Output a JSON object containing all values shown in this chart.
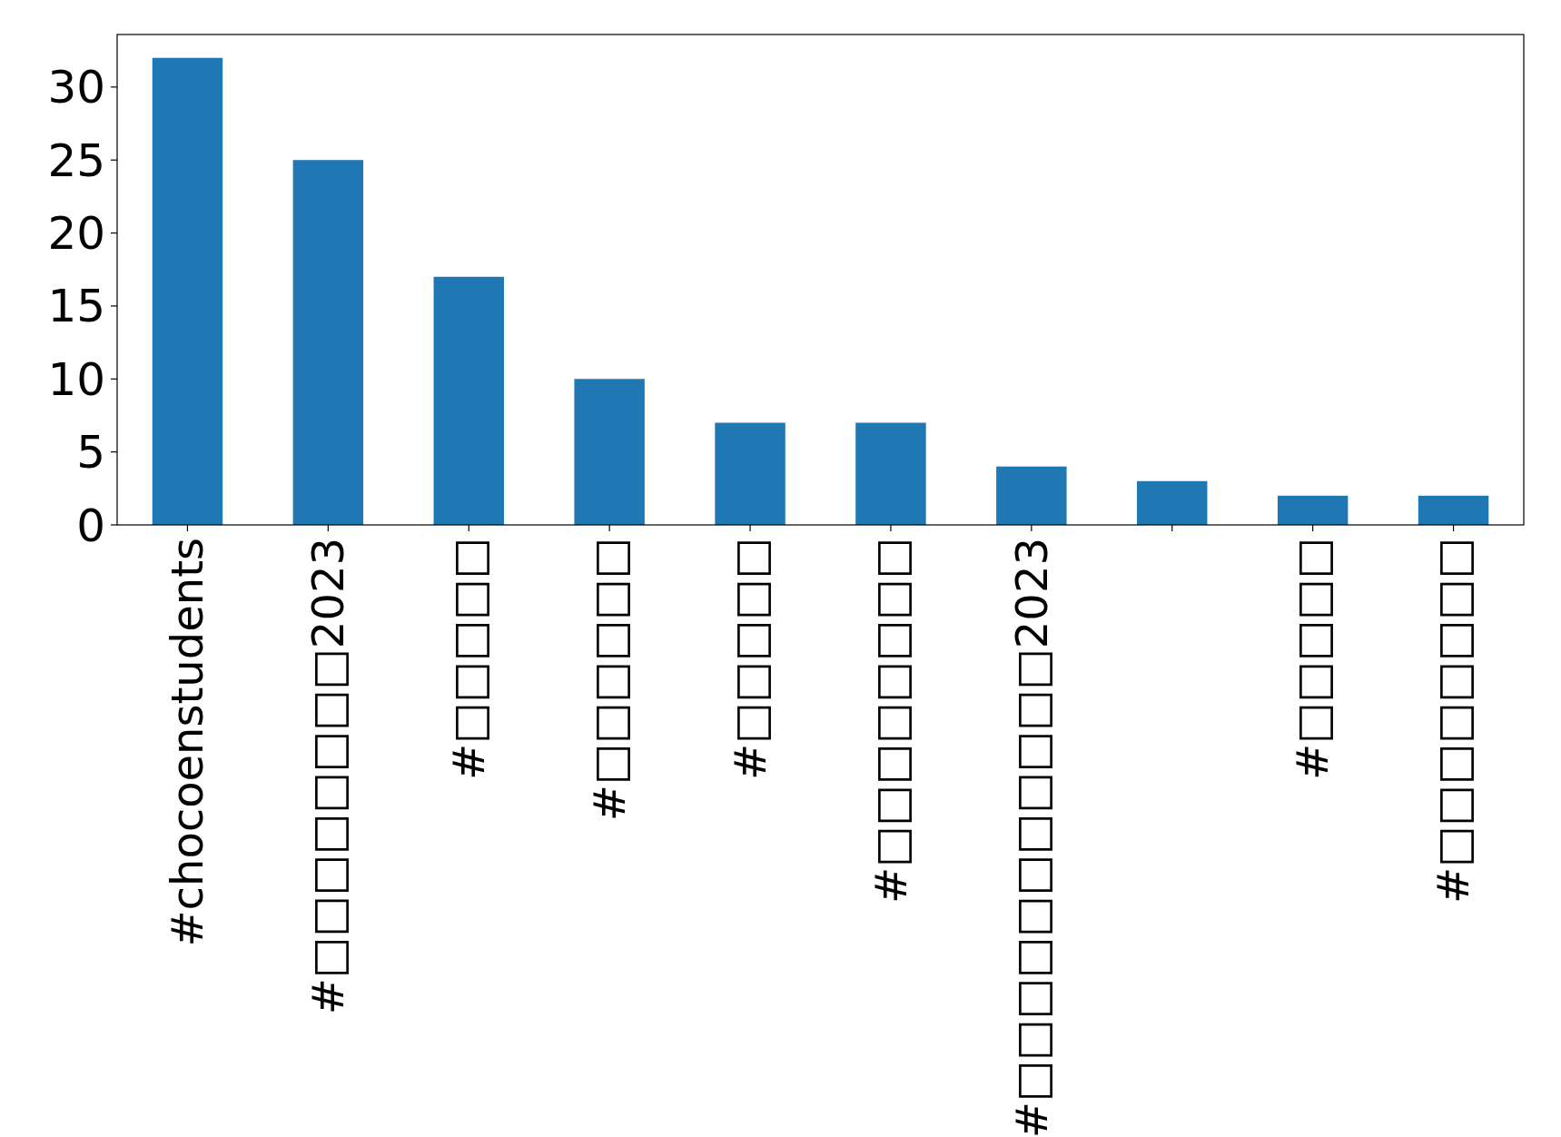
{
  "chart_data": {
    "type": "bar",
    "categories": [
      "#chocoenstudents",
      "#□□□□□□□□2023",
      "#□□□□□",
      "#□□□□□□",
      "#□□□□□",
      "#□□□□□□□□",
      "#□□□□□□□□□□□2023",
      null,
      "#□□□□□",
      "#□□□□□□□□"
    ],
    "values": [
      32,
      25,
      17,
      10,
      7,
      7,
      4,
      3,
      2,
      2
    ],
    "color": "#1f77b4",
    "ylim": [
      0,
      33.6
    ],
    "yticks": [
      0,
      5,
      10,
      15,
      20,
      25,
      30
    ],
    "grid": false
  }
}
